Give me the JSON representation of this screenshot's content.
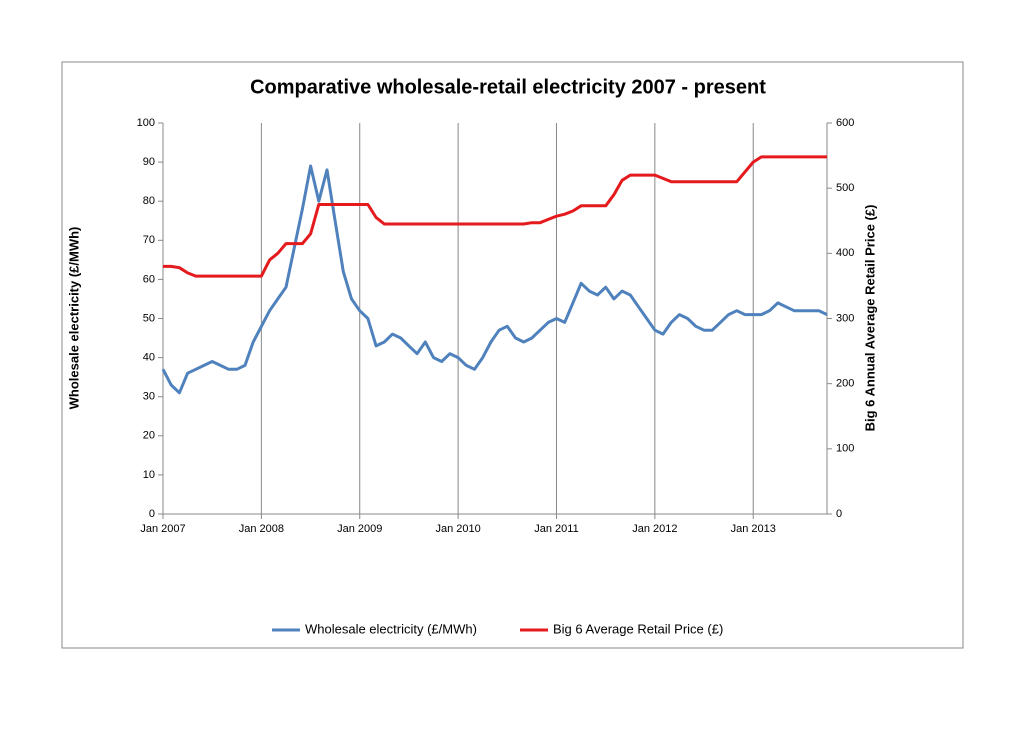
{
  "chart_data": {
    "type": "line",
    "title": "Comparative wholesale-retail electricity 2007 - present",
    "y_label": "Wholesale electricity (£/MWh)",
    "y2_label": "Big 6 Annual Average Retail Price (£)",
    "x": [
      "2007-01",
      "2007-02",
      "2007-03",
      "2007-04",
      "2007-05",
      "2007-06",
      "2007-07",
      "2007-08",
      "2007-09",
      "2007-10",
      "2007-11",
      "2007-12",
      "2008-01",
      "2008-02",
      "2008-03",
      "2008-04",
      "2008-05",
      "2008-06",
      "2008-07",
      "2008-08",
      "2008-09",
      "2008-10",
      "2008-11",
      "2008-12",
      "2009-01",
      "2009-02",
      "2009-03",
      "2009-04",
      "2009-05",
      "2009-06",
      "2009-07",
      "2009-08",
      "2009-09",
      "2009-10",
      "2009-11",
      "2009-12",
      "2010-01",
      "2010-02",
      "2010-03",
      "2010-04",
      "2010-05",
      "2010-06",
      "2010-07",
      "2010-08",
      "2010-09",
      "2010-10",
      "2010-11",
      "2010-12",
      "2011-01",
      "2011-02",
      "2011-03",
      "2011-04",
      "2011-05",
      "2011-06",
      "2011-07",
      "2011-08",
      "2011-09",
      "2011-10",
      "2011-11",
      "2011-12",
      "2012-01",
      "2012-02",
      "2012-03",
      "2012-04",
      "2012-05",
      "2012-06",
      "2012-07",
      "2012-08",
      "2012-09",
      "2012-10",
      "2012-11",
      "2012-12",
      "2013-01",
      "2013-02",
      "2013-03",
      "2013-04",
      "2013-05",
      "2013-06",
      "2013-07",
      "2013-08",
      "2013-09",
      "2013-10"
    ],
    "series": [
      {
        "name": "Wholesale electricity (£/MWh)",
        "color": "#4f81bd",
        "values": [
          37,
          33,
          31,
          36,
          37,
          38,
          39,
          38,
          37,
          37,
          38,
          44,
          48,
          52,
          55,
          58,
          68,
          78,
          89,
          80,
          88,
          75,
          62,
          55,
          52,
          50,
          43,
          44,
          46,
          45,
          43,
          41,
          44,
          40,
          39,
          41,
          40,
          38,
          37,
          40,
          44,
          47,
          48,
          45,
          44,
          45,
          47,
          49,
          50,
          49,
          54,
          59,
          57,
          56,
          58,
          55,
          57,
          56,
          53,
          50,
          47,
          46,
          49,
          51,
          50,
          48,
          47,
          47,
          49,
          51,
          52,
          51,
          51,
          51,
          52,
          54,
          53,
          52,
          52,
          52,
          52,
          51
        ]
      },
      {
        "name": "Big 6 Average Retail Price (£)",
        "color": "#e41a1c",
        "axis": "y2",
        "values": [
          380,
          380,
          378,
          370,
          365,
          365,
          365,
          365,
          365,
          365,
          365,
          365,
          365,
          390,
          400,
          415,
          415,
          415,
          430,
          475,
          475,
          475,
          475,
          475,
          475,
          475,
          455,
          445,
          445,
          445,
          445,
          445,
          445,
          445,
          445,
          445,
          445,
          445,
          445,
          445,
          445,
          445,
          445,
          445,
          445,
          447,
          447,
          452,
          457,
          460,
          465,
          473,
          473,
          473,
          473,
          490,
          512,
          520,
          520,
          520,
          520,
          515,
          510,
          510,
          510,
          510,
          510,
          510,
          510,
          510,
          510,
          525,
          540,
          548,
          548,
          548,
          548,
          548,
          548,
          548,
          548,
          548
        ]
      }
    ],
    "xlim": [
      "2007-01",
      "2013-10"
    ],
    "xticks": [
      {
        "value": "2007-01",
        "label": "Jan 2007"
      },
      {
        "value": "2008-01",
        "label": "Jan 2008"
      },
      {
        "value": "2009-01",
        "label": "Jan 2009"
      },
      {
        "value": "2010-01",
        "label": "Jan 2010"
      },
      {
        "value": "2011-01",
        "label": "Jan 2011"
      },
      {
        "value": "2012-01",
        "label": "Jan 2012"
      },
      {
        "value": "2013-01",
        "label": "Jan 2013"
      }
    ],
    "ylim": [
      0,
      100
    ],
    "yticks": [
      0,
      10,
      20,
      30,
      40,
      50,
      60,
      70,
      80,
      90,
      100
    ],
    "y2lim": [
      0,
      600
    ],
    "y2ticks": [
      0,
      100,
      200,
      300,
      400,
      500,
      600
    ],
    "grid": "x",
    "legend": "bottom"
  }
}
